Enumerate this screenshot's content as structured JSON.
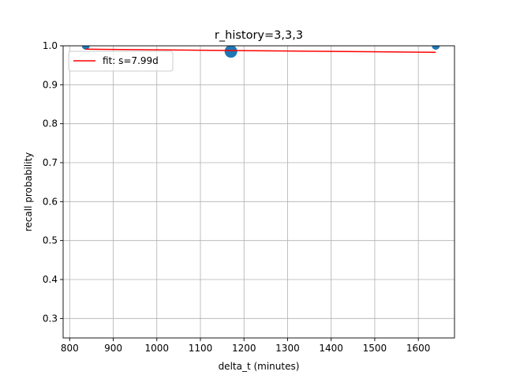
{
  "chart_data": {
    "type": "scatter",
    "title": "r_history=3,3,3",
    "xlabel": "delta_t (minutes)",
    "ylabel": "recall probability",
    "xlim": [
      785,
      1683
    ],
    "ylim": [
      0.25,
      1.0
    ],
    "xticks": [
      800,
      900,
      1000,
      1100,
      1200,
      1300,
      1400,
      1500,
      1600
    ],
    "yticks": [
      0.3,
      0.4,
      0.5,
      0.6,
      0.7,
      0.8,
      0.9,
      1.0
    ],
    "ytick_labels": [
      "0.3",
      "0.4",
      "0.5",
      "0.6",
      "0.7",
      "0.8",
      "0.9",
      "1.0"
    ],
    "grid": true,
    "legend_position": "upper-left",
    "points": [
      {
        "x": 837,
        "y": 1.0,
        "size": 5
      },
      {
        "x": 1170,
        "y": 0.9857,
        "size": 8
      },
      {
        "x": 1640,
        "y": 1.0,
        "size": 5
      }
    ],
    "fit_line": {
      "name": "fit: s=7.99d",
      "x": [
        837,
        1640
      ],
      "y": [
        0.9913,
        0.9832
      ]
    },
    "colors": {
      "points": "#1f77b4",
      "fit": "#ff0000"
    }
  }
}
